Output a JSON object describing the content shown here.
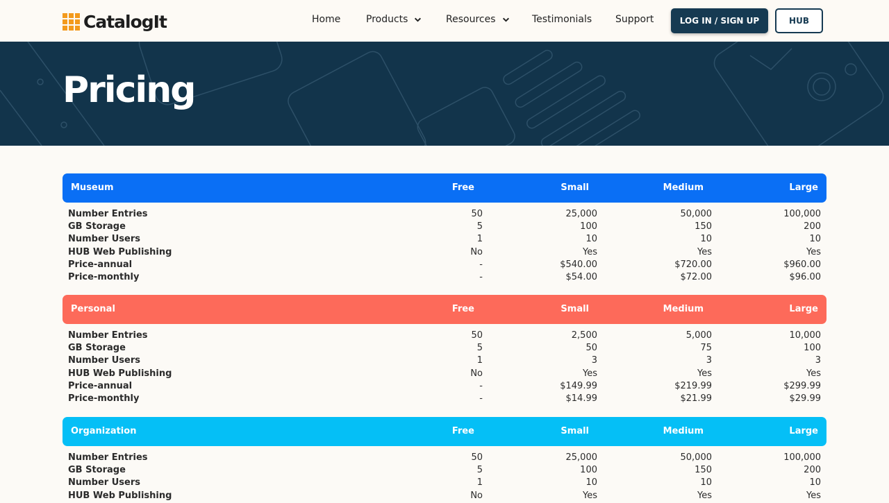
{
  "header": {
    "logo_text": "CatalogIt",
    "nav": [
      {
        "label": "Home"
      },
      {
        "label": "Products"
      },
      {
        "label": "Resources"
      },
      {
        "label": "Testimonials"
      },
      {
        "label": "Support"
      }
    ],
    "login_label": "LOG IN / SIGN UP",
    "hub_label": "HUB"
  },
  "hero": {
    "title": "Pricing"
  },
  "colors": {
    "museum": "#0a6ff5",
    "personal": "#fd6a5a",
    "organization": "#05bff6",
    "navy": "#163a52",
    "logo_orange": "#f39a1d"
  },
  "plans": [
    {
      "name": "Museum",
      "columns": [
        "Free",
        "Small",
        "Medium",
        "Large"
      ],
      "rows": [
        {
          "label": "Number Entries",
          "values": [
            "50",
            "25,000",
            "50,000",
            "100,000"
          ]
        },
        {
          "label": "GB Storage",
          "values": [
            "5",
            "100",
            "150",
            "200"
          ]
        },
        {
          "label": "Number Users",
          "values": [
            "1",
            "10",
            "10",
            "10"
          ]
        },
        {
          "label": "HUB Web Publishing",
          "values": [
            "No",
            "Yes",
            "Yes",
            "Yes"
          ]
        },
        {
          "label": "Price-annual",
          "values": [
            "-",
            "$540.00",
            "$720.00",
            "$960.00"
          ]
        },
        {
          "label": "Price-monthly",
          "values": [
            "-",
            "$54.00",
            "$72.00",
            "$96.00"
          ]
        }
      ]
    },
    {
      "name": "Personal",
      "columns": [
        "Free",
        "Small",
        "Medium",
        "Large"
      ],
      "rows": [
        {
          "label": "Number Entries",
          "values": [
            "50",
            "2,500",
            "5,000",
            "10,000"
          ]
        },
        {
          "label": "GB Storage",
          "values": [
            "5",
            "50",
            "75",
            "100"
          ]
        },
        {
          "label": "Number Users",
          "values": [
            "1",
            "3",
            "3",
            "3"
          ]
        },
        {
          "label": "HUB Web Publishing",
          "values": [
            "No",
            "Yes",
            "Yes",
            "Yes"
          ]
        },
        {
          "label": "Price-annual",
          "values": [
            "-",
            "$149.99",
            "$219.99",
            "$299.99"
          ]
        },
        {
          "label": "Price-monthly",
          "values": [
            "-",
            "$14.99",
            "$21.99",
            "$29.99"
          ]
        }
      ]
    },
    {
      "name": "Organization",
      "columns": [
        "Free",
        "Small",
        "Medium",
        "Large"
      ],
      "rows": [
        {
          "label": "Number Entries",
          "values": [
            "50",
            "25,000",
            "50,000",
            "100,000"
          ]
        },
        {
          "label": "GB Storage",
          "values": [
            "5",
            "100",
            "150",
            "200"
          ]
        },
        {
          "label": "Number Users",
          "values": [
            "1",
            "10",
            "10",
            "10"
          ]
        },
        {
          "label": "HUB Web Publishing",
          "values": [
            "No",
            "Yes",
            "Yes",
            "Yes"
          ]
        }
      ]
    }
  ]
}
